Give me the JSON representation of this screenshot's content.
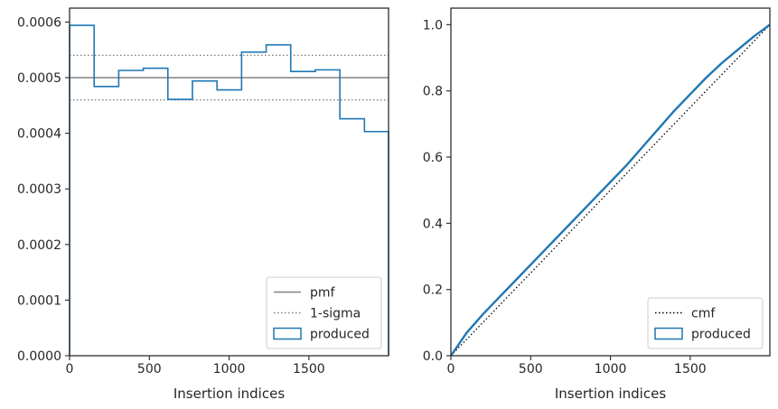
{
  "chart_data": [
    {
      "type": "histogram",
      "xlabel": "Insertion indices",
      "ylabel": "",
      "xlim": [
        0,
        1999
      ],
      "ylim": [
        0,
        0.000625
      ],
      "x_ticks": [
        0,
        500,
        1000,
        1500
      ],
      "x_tick_labels": [
        "0",
        "500",
        "1000",
        "1500"
      ],
      "y_ticks": [
        0,
        0.0001,
        0.0002,
        0.0003,
        0.0004,
        0.0005,
        0.0006
      ],
      "y_tick_labels": [
        "0.0000",
        "0.0001",
        "0.0002",
        "0.0003",
        "0.0004",
        "0.0005",
        "0.0006"
      ],
      "bin_edges": [
        0,
        154,
        308,
        462,
        616,
        770,
        924,
        1078,
        1232,
        1386,
        1540,
        1694,
        1848,
        1999
      ],
      "values": [
        0.000594,
        0.000484,
        0.000513,
        0.000517,
        0.000461,
        0.000494,
        0.000478,
        0.000546,
        0.000559,
        0.000511,
        0.000514,
        0.000426,
        0.000403
      ],
      "pmf": 0.0005,
      "sigma_band": [
        0.00046,
        0.00054
      ],
      "legend_position": "lower-right",
      "legend": [
        {
          "label": "pmf",
          "style": "solid",
          "color": "#808080"
        },
        {
          "label": "1-sigma",
          "style": "dotted",
          "color": "#808080"
        },
        {
          "label": "produced",
          "style": "box",
          "color": "#1f77b4"
        }
      ]
    },
    {
      "type": "line",
      "xlabel": "Insertion indices",
      "ylabel": "",
      "xlim": [
        0,
        1999
      ],
      "ylim": [
        0,
        1.05
      ],
      "x_ticks": [
        0,
        500,
        1000,
        1500
      ],
      "x_tick_labels": [
        "0",
        "500",
        "1000",
        "1500"
      ],
      "y_ticks": [
        0,
        0.2,
        0.4,
        0.6,
        0.8,
        1.0
      ],
      "y_tick_labels": [
        "0.0",
        "0.2",
        "0.4",
        "0.6",
        "0.8",
        "1.0"
      ],
      "cmf": {
        "x": [
          0,
          1999
        ],
        "y": [
          0,
          1
        ]
      },
      "produced": {
        "x": [
          0,
          100,
          200,
          300,
          400,
          500,
          600,
          700,
          800,
          900,
          1000,
          1100,
          1200,
          1300,
          1400,
          1500,
          1600,
          1700,
          1800,
          1900,
          1999
        ],
        "y": [
          0,
          0.07,
          0.125,
          0.175,
          0.225,
          0.275,
          0.325,
          0.375,
          0.425,
          0.475,
          0.525,
          0.575,
          0.63,
          0.685,
          0.74,
          0.79,
          0.84,
          0.885,
          0.925,
          0.965,
          1.0
        ]
      },
      "legend_position": "lower-right",
      "legend": [
        {
          "label": "cmf",
          "style": "dotted",
          "color": "#000000"
        },
        {
          "label": "produced",
          "style": "box",
          "color": "#1f77b4"
        }
      ]
    }
  ]
}
